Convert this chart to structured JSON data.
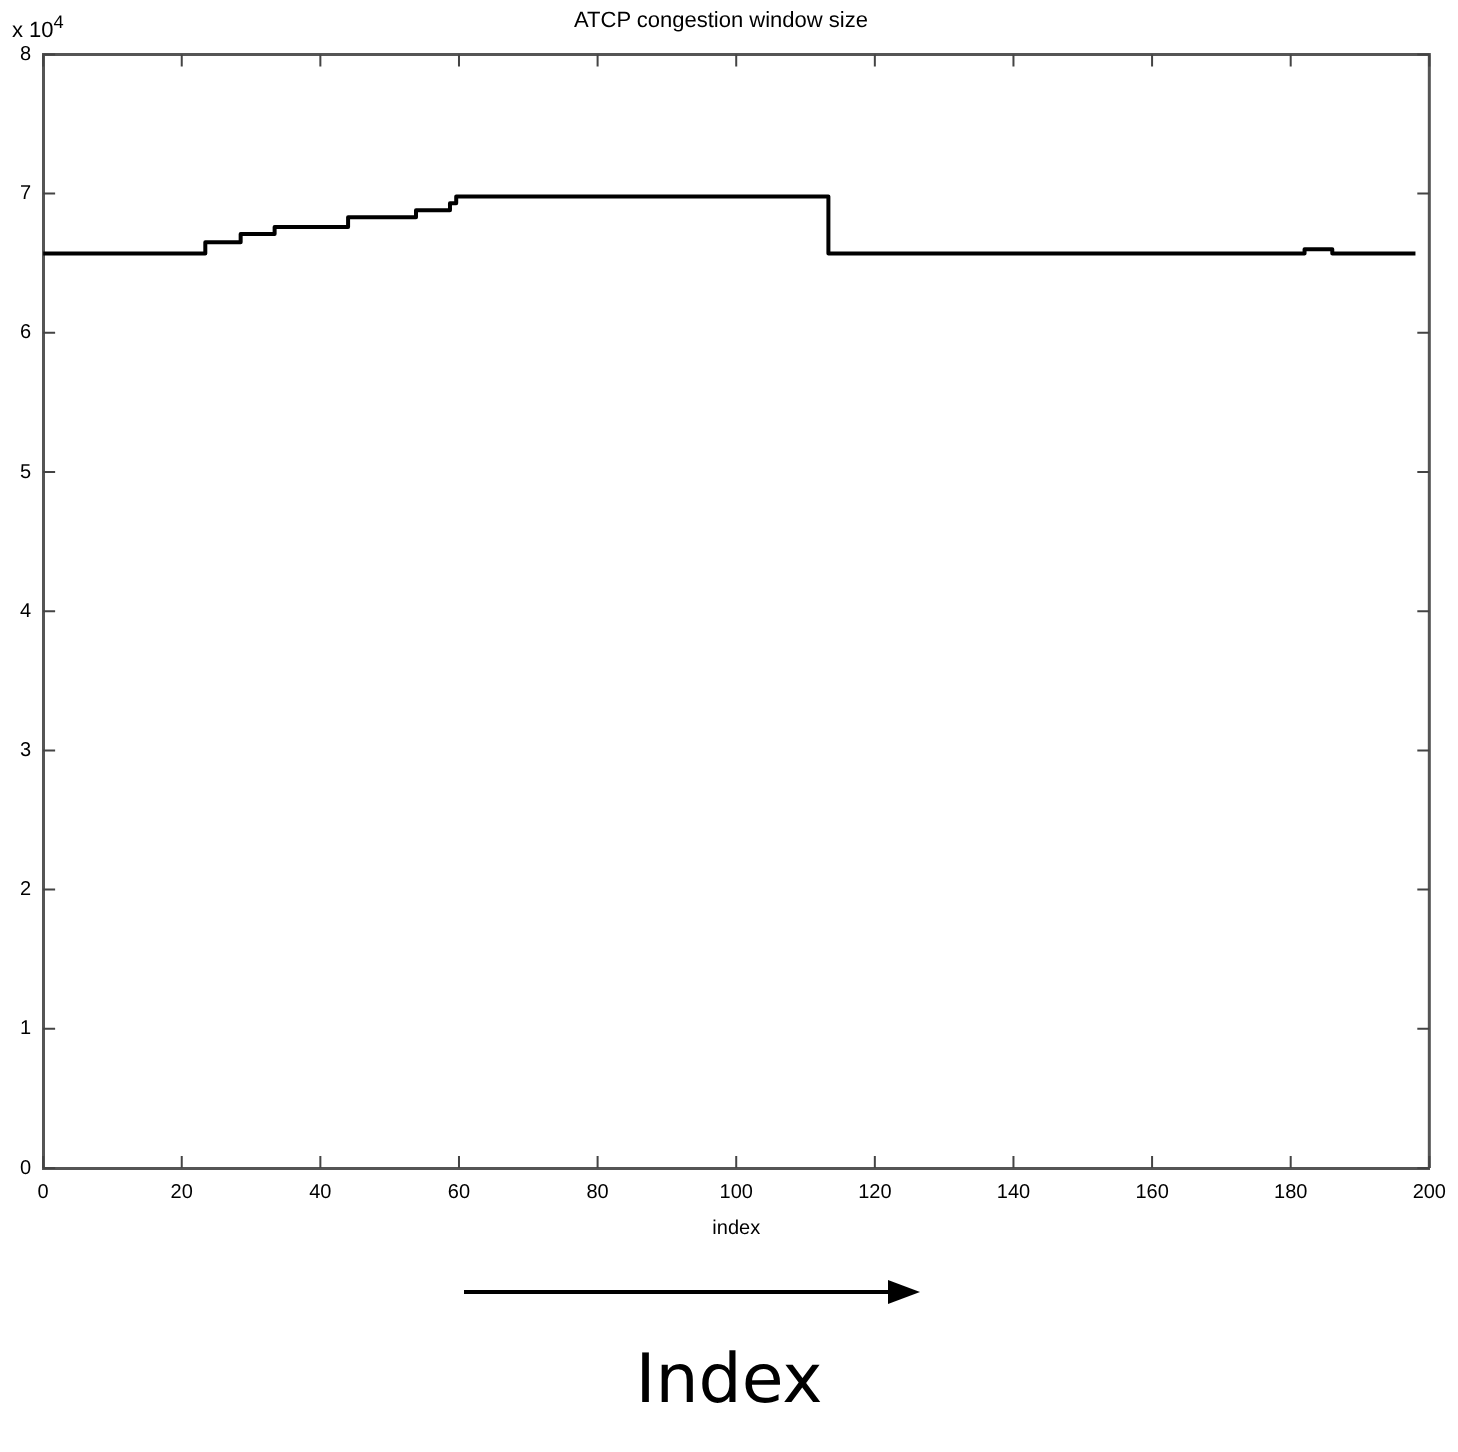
{
  "chart_data": {
    "type": "step",
    "title": "ATCP congestion window size",
    "xlabel": "index",
    "annotations": [
      "x 10$^{4}$",
      "Index"
    ],
    "x": [
      0,
      22.8,
      23.4,
      28.5,
      33.4,
      44,
      53.8,
      58.7,
      59.6,
      113.3,
      182,
      186,
      198
    ],
    "series": [
      {
        "color": "#000000",
        "values": [
          6.57,
          6.57,
          6.65,
          6.71,
          6.76,
          6.83,
          6.88,
          6.93,
          6.98,
          6.57,
          6.6,
          6.57,
          6.57
        ]
      }
    ],
    "xlim": [
      0,
      200
    ],
    "xticks": [
      0,
      20,
      40,
      60,
      80,
      100,
      120,
      140,
      160,
      180,
      200
    ],
    "ylim": [
      0,
      8
    ],
    "yticks": [
      0,
      1,
      2,
      3,
      4,
      5,
      6,
      7,
      8
    ],
    "grid": false,
    "legend": false,
    "marker": "none",
    "line_style": "solid"
  }
}
